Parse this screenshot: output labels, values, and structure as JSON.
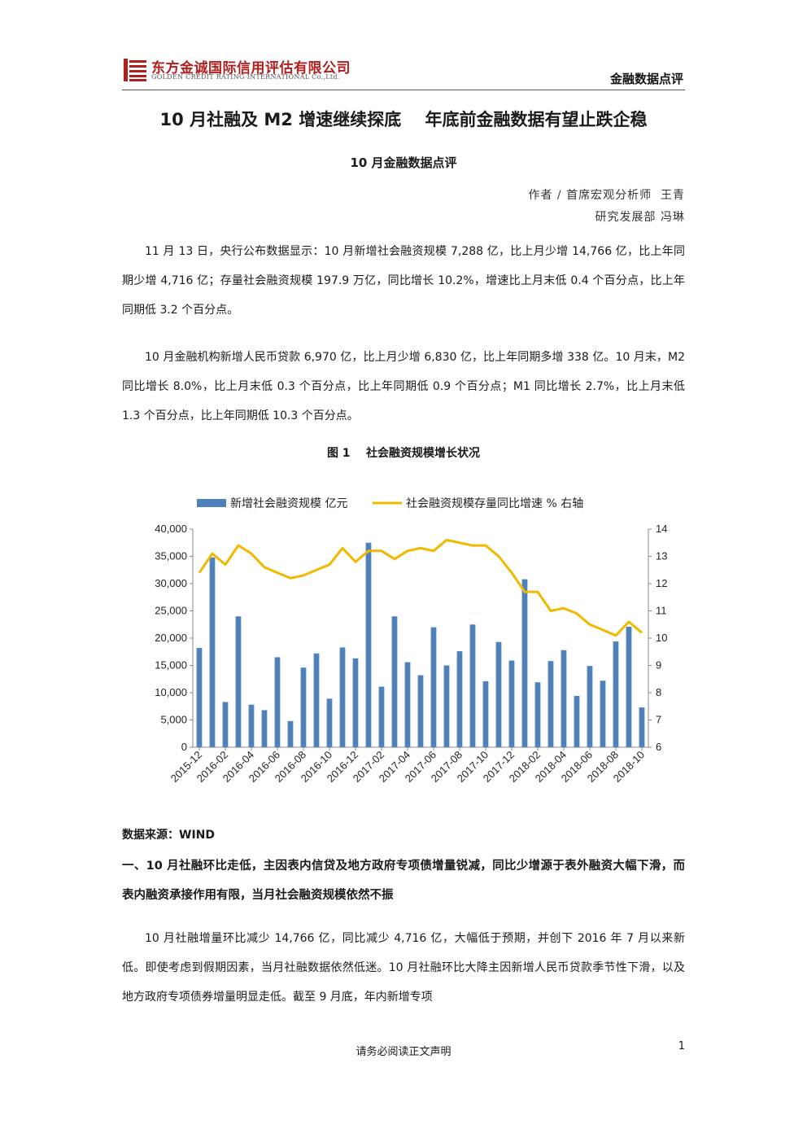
{
  "header": {
    "company_cn": "东方金诚国际信用评估有限公司",
    "company_en": "GOLDEN CREDIT RATING INTERNATIONAL Co.,Ltd.",
    "section_label": "金融数据点评",
    "brand_color": "#b01e1e"
  },
  "title": "10 月社融及 M2 增速继续探底    年底前金融数据有望止跌企稳",
  "subtitle": "10 月金融数据点评",
  "author_line1": "作者 / 首席宏观分析师  王青",
  "author_line2": "研究发展部 冯琳",
  "paragraphs": [
    "11 月 13 日，央行公布数据显示：10 月新增社会融资规模 7,288 亿，比上月少增 14,766 亿，比上年同期少增 4,716 亿；存量社会融资规模 197.9 万亿，同比增长 10.2%，增速比上月末低 0.4 个百分点，比上年同期低 3.2 个百分点。",
    "10 月金融机构新增人民币贷款 6,970 亿，比上月少增 6,830 亿，比上年同期多增 338 亿。10 月末，M2 同比增长 8.0%，比上月末低 0.3 个百分点，比上年同期低 0.9 个百分点；M1 同比增长 2.7%，比上月末低 1.3 个百分点，比上年同期低 10.3 个百分点。"
  ],
  "figure_caption": "图 1    社会融资规模增长状况",
  "chart_data": {
    "type": "bar",
    "categories": [
      "2015-12",
      "2016-01",
      "2016-02",
      "2016-03",
      "2016-04",
      "2016-05",
      "2016-06",
      "2016-07",
      "2016-08",
      "2016-09",
      "2016-10",
      "2016-11",
      "2016-12",
      "2017-01",
      "2017-02",
      "2017-03",
      "2017-04",
      "2017-05",
      "2017-06",
      "2017-07",
      "2017-08",
      "2017-09",
      "2017-10",
      "2017-11",
      "2017-12",
      "2018-01",
      "2018-02",
      "2018-03",
      "2018-04",
      "2018-05",
      "2018-06",
      "2018-07",
      "2018-08",
      "2018-09",
      "2018-10"
    ],
    "tick_labels": [
      "2015-12",
      "2016-02",
      "2016-04",
      "2016-06",
      "2016-08",
      "2016-10",
      "2016-12",
      "2017-02",
      "2017-04",
      "2017-06",
      "2017-08",
      "2017-10",
      "2017-12",
      "2018-02",
      "2018-04",
      "2018-06",
      "2018-08",
      "2018-10"
    ],
    "series": [
      {
        "name": "新增社会融资规模 亿元",
        "axis": "left",
        "kind": "bar",
        "color": "#4f81bd",
        "values": [
          18200,
          34800,
          8300,
          24000,
          7800,
          6800,
          16500,
          4800,
          14600,
          17200,
          8900,
          18300,
          16300,
          37500,
          11100,
          24000,
          15600,
          13200,
          22000,
          15000,
          17600,
          22500,
          12100,
          19300,
          15900,
          30800,
          11900,
          15800,
          17800,
          9400,
          14900,
          12200,
          19400,
          22100,
          7300
        ]
      },
      {
        "name": "社会融资规模存量同比增速 % 右轴",
        "axis": "right",
        "kind": "line",
        "color": "#f2b800",
        "values": [
          12.4,
          13.1,
          12.7,
          13.4,
          13.1,
          12.6,
          12.4,
          12.2,
          12.3,
          12.5,
          12.7,
          13.3,
          12.8,
          13.2,
          13.2,
          12.9,
          13.2,
          13.3,
          13.2,
          13.6,
          13.5,
          13.4,
          13.4,
          13.0,
          12.4,
          11.7,
          11.7,
          11.0,
          11.1,
          10.9,
          10.5,
          10.3,
          10.1,
          10.6,
          10.2
        ]
      }
    ],
    "ylim_left": [
      0,
      40000
    ],
    "yticks_left": [
      "40,000",
      "35,000",
      "30,000",
      "25,000",
      "20,000",
      "15,000",
      "10,000",
      "5,000",
      "0"
    ],
    "ylim_right": [
      6,
      14
    ],
    "yticks_right": [
      "14",
      "13",
      "12",
      "11",
      "10",
      "9",
      "8",
      "7",
      "6"
    ],
    "legend_position": "top",
    "grid": false
  },
  "source_label": "数据来源：WIND",
  "section1": "一、10 月社融环比走低，主因表内信贷及地方政府专项债增量锐减，同比少增源于表外融资大幅下滑，而表内融资承接作用有限，当月社会融资规模依然不振",
  "paragraph3": "10 月社融增量环比减少 14,766 亿，同比减少 4,716 亿，大幅低于预期，并创下 2016 年 7 月以来新低。即使考虑到假期因素，当月社融数据依然低迷。10 月社融环比大降主因新增人民币贷款季节性下滑，以及地方政府专项债券增量明显走低。截至 9 月底，年内新增专项",
  "footer": "请务必阅读正文声明",
  "page_number": "1"
}
